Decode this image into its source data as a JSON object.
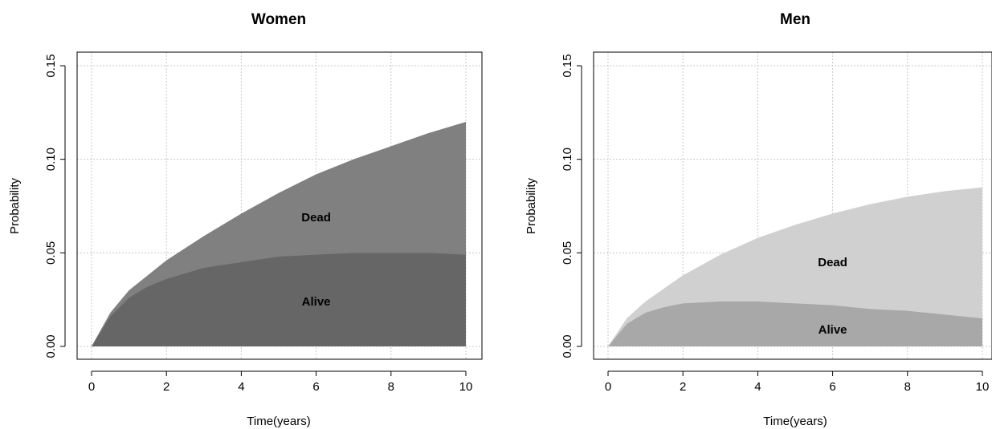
{
  "chart_data": [
    {
      "type": "area",
      "title": "Women",
      "xlabel": "Time(years)",
      "ylabel": "Probability",
      "xlim": [
        0,
        10
      ],
      "ylim": [
        0,
        0.15
      ],
      "xticks": [
        0,
        2,
        4,
        6,
        8,
        10
      ],
      "xtick_labels": [
        "0",
        "2",
        "4",
        "6",
        "8",
        "10"
      ],
      "yticks": [
        0,
        0.05,
        0.1,
        0.15
      ],
      "ytick_labels": [
        "0.00",
        "0.05",
        "0.10",
        "0.15"
      ],
      "grid": true,
      "x": [
        0,
        0.5,
        1,
        1.5,
        2,
        3,
        4,
        5,
        6,
        7,
        8,
        9,
        10
      ],
      "series": [
        {
          "name": "Alive",
          "color": "#666666",
          "label_at": [
            6,
            0.024
          ],
          "values": [
            0,
            0.016,
            0.026,
            0.032,
            0.036,
            0.042,
            0.045,
            0.048,
            0.049,
            0.05,
            0.05,
            0.05,
            0.049
          ]
        },
        {
          "name": "Dead",
          "color": "#808080",
          "label_at": [
            6,
            0.069
          ],
          "values": [
            0,
            0.018,
            0.03,
            0.038,
            0.046,
            0.059,
            0.071,
            0.082,
            0.092,
            0.1,
            0.107,
            0.114,
            0.12
          ]
        }
      ]
    },
    {
      "type": "area",
      "title": "Men",
      "xlabel": "Time(years)",
      "ylabel": "Probability",
      "xlim": [
        0,
        10
      ],
      "ylim": [
        0,
        0.15
      ],
      "xticks": [
        0,
        2,
        4,
        6,
        8,
        10
      ],
      "xtick_labels": [
        "0",
        "2",
        "4",
        "6",
        "8",
        "10"
      ],
      "yticks": [
        0,
        0.05,
        0.1,
        0.15
      ],
      "ytick_labels": [
        "0.00",
        "0.05",
        "0.10",
        "0.15"
      ],
      "grid": true,
      "x": [
        0,
        0.5,
        1,
        1.5,
        2,
        3,
        4,
        5,
        6,
        7,
        8,
        9,
        10
      ],
      "series": [
        {
          "name": "Alive",
          "color": "#a8a8a8",
          "label_at": [
            6,
            0.009
          ],
          "values": [
            0,
            0.012,
            0.018,
            0.021,
            0.023,
            0.024,
            0.024,
            0.023,
            0.022,
            0.02,
            0.019,
            0.017,
            0.015
          ]
        },
        {
          "name": "Dead",
          "color": "#d0d0d0",
          "label_at": [
            6,
            0.045
          ],
          "values": [
            0,
            0.015,
            0.024,
            0.031,
            0.038,
            0.049,
            0.058,
            0.065,
            0.071,
            0.076,
            0.08,
            0.083,
            0.085
          ]
        }
      ]
    }
  ]
}
